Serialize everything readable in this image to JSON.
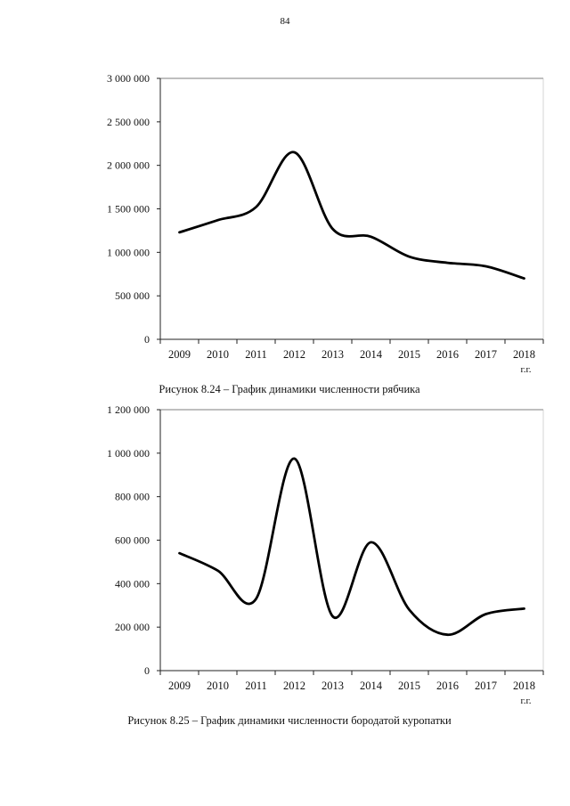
{
  "page": {
    "number": "84"
  },
  "chart_data": [
    {
      "type": "line",
      "title": "Рисунок 8.24 – График динамики численности рябчика",
      "xlabel": "г.г.",
      "ylabel": "",
      "ylim": [
        0,
        3000000
      ],
      "yticks": [
        0,
        500000,
        1000000,
        1500000,
        2000000,
        2500000,
        3000000
      ],
      "ytick_labels": [
        "0",
        "500 000",
        "1 000 000",
        "1 500 000",
        "2 000 000",
        "2 500 000",
        "3 000 000"
      ],
      "grid": "top-border-only",
      "legend": "none",
      "categories": [
        "2009",
        "2010",
        "2011",
        "2012",
        "2013",
        "2014",
        "2015",
        "2016",
        "2017",
        "2018"
      ],
      "series": [
        {
          "values": [
            1230000,
            1370000,
            1520000,
            2150000,
            1270000,
            1180000,
            950000,
            880000,
            840000,
            700000
          ]
        }
      ]
    },
    {
      "type": "line",
      "title": "Рисунок 8.25 – График динамики численности бородатой куропатки",
      "xlabel": "г.г.",
      "ylabel": "",
      "ylim": [
        0,
        1200000
      ],
      "yticks": [
        0,
        200000,
        400000,
        600000,
        800000,
        1000000,
        1200000
      ],
      "ytick_labels": [
        "0",
        "200 000",
        "400 000",
        "600 000",
        "800 000",
        "1 000 000",
        "1 200 000"
      ],
      "grid": "top-border-only",
      "legend": "none",
      "categories": [
        "2009",
        "2010",
        "2011",
        "2012",
        "2013",
        "2014",
        "2015",
        "2016",
        "2017",
        "2018"
      ],
      "series": [
        {
          "values": [
            540000,
            460000,
            330000,
            975000,
            250000,
            590000,
            280000,
            165000,
            260000,
            285000
          ]
        }
      ]
    }
  ]
}
